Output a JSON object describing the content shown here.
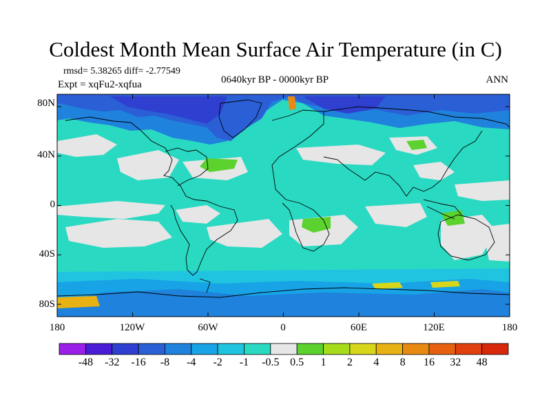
{
  "title": "Coldest Month Mean Surface Air Temperature (in C)",
  "stats": "rmsd= 5.38265 diff= -2.77549",
  "expt": "Expt = xqFu2-xqfua",
  "period": "0640kyr BP - 0000kyr BP",
  "season": "ANN",
  "map": {
    "projection": "cylindrical equidistant",
    "field": "Coldest Month Mean Surface Air Temperature difference",
    "units": "C",
    "lon_ticks": [
      "180",
      "120W",
      "60W",
      "0",
      "60E",
      "120E",
      "180"
    ],
    "lat_ticks": [
      "80N",
      "40N",
      "0",
      "40S",
      "80S"
    ],
    "lat_tick_values": [
      80,
      40,
      0,
      -40,
      -80
    ],
    "lon_tick_values": [
      -180,
      -120,
      -60,
      0,
      60,
      120,
      180
    ]
  },
  "colorbar": {
    "labels": [
      "-48",
      "-32",
      "-16",
      "-8",
      "-4",
      "-2",
      "-1",
      "-0.5",
      "0.5",
      "1",
      "2",
      "4",
      "8",
      "16",
      "32",
      "48"
    ],
    "colors": [
      "#9b1fe8",
      "#4b1cd6",
      "#2f3fd0",
      "#2a5fd6",
      "#1f82dc",
      "#17a3e6",
      "#21c4e0",
      "#2ad9c2",
      "#e6e6e6",
      "#5cd22e",
      "#a6dc1c",
      "#d8d61a",
      "#e8b214",
      "#e88a12",
      "#e66010",
      "#e0400e",
      "#d8280c"
    ]
  }
}
